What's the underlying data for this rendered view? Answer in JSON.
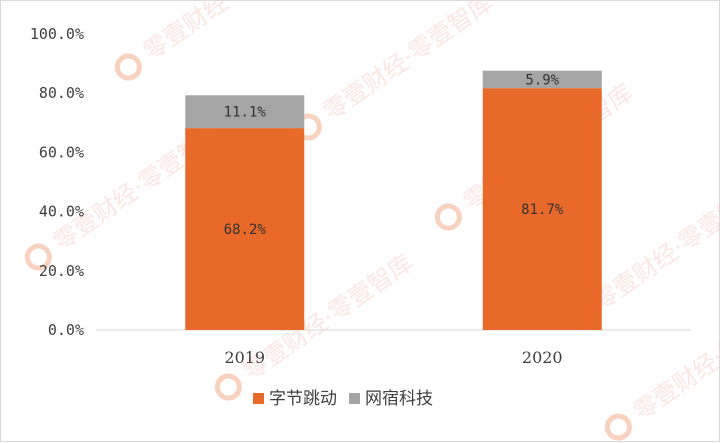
{
  "chart_data": {
    "type": "bar",
    "stacked": true,
    "categories": [
      "2019",
      "2020"
    ],
    "series": [
      {
        "name": "字节跳动",
        "values": [
          68.2,
          81.7
        ],
        "labels": [
          "68.2%",
          "81.7%"
        ],
        "color": "#e8692a"
      },
      {
        "name": "网宿科技",
        "values": [
          11.1,
          5.9
        ],
        "labels": [
          "11.1%",
          "5.9%"
        ],
        "color": "#a5a5a5"
      }
    ],
    "yticks": [
      "0.0%",
      "20.0%",
      "40.0%",
      "60.0%",
      "80.0%",
      "100.0%"
    ],
    "ylim": [
      0,
      100
    ],
    "grid": false,
    "legend": "bottom",
    "title": "",
    "xlabel": "",
    "ylabel": ""
  },
  "watermark": {
    "text": "零壹财经·零壹智库",
    "color": "#e8692a"
  }
}
